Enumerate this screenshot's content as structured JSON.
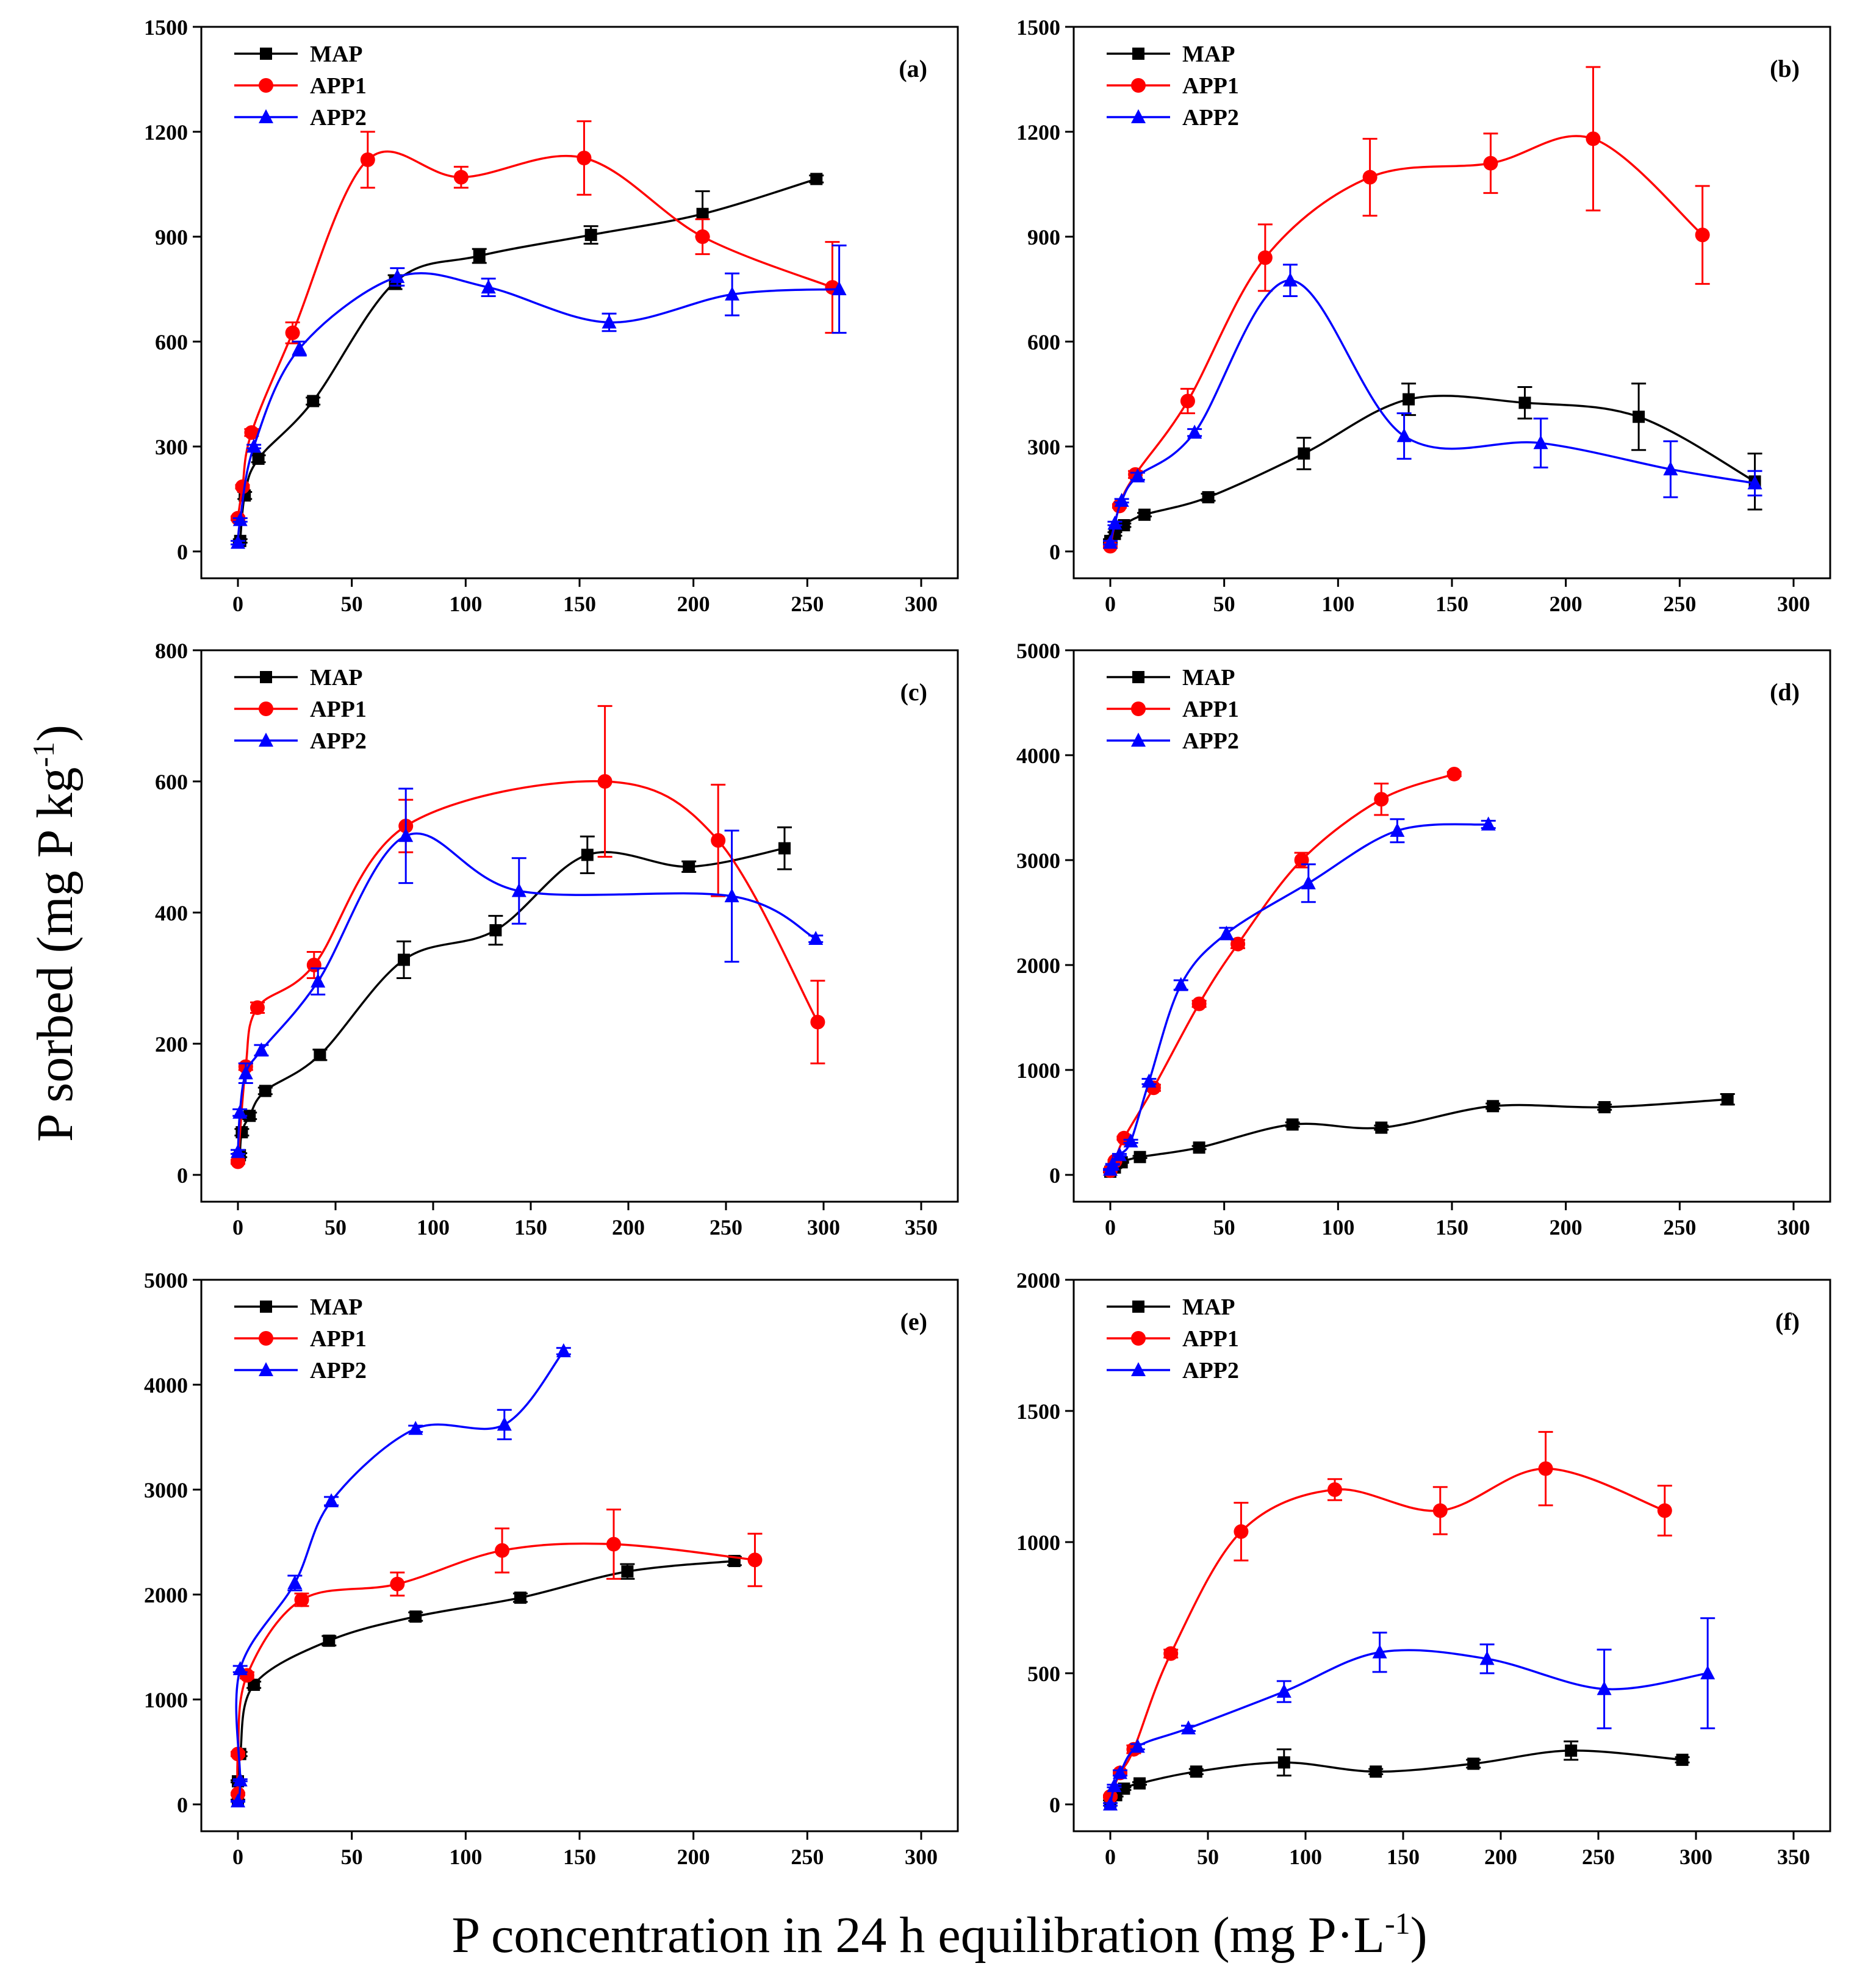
{
  "figure": {
    "ylabel_main": "P sorbed (mg P kg",
    "ylabel_sup": "-1",
    "ylabel_end": ")",
    "xlabel_main": "P concentration in 24 h equilibration (mg P·L",
    "xlabel_sup": "-1",
    "xlabel_end": ")"
  },
  "colors": {
    "MAP": "#000000",
    "APP1": "#ff0000",
    "APP2": "#0000ff"
  },
  "chart_data": [
    {
      "type": "scatter",
      "panel": "(a)",
      "xlim": [
        0,
        300
      ],
      "ylim": [
        0,
        1500
      ],
      "xticks": [
        0,
        50,
        100,
        150,
        200,
        250,
        300
      ],
      "yticks": [
        0,
        300,
        600,
        900,
        1200,
        1500
      ],
      "legend": [
        "MAP",
        "APP1",
        "APP2"
      ],
      "series": [
        {
          "name": "MAP",
          "marker": "square",
          "x": [
            1,
            3,
            9,
            33,
            69,
            106,
            155,
            204,
            254
          ],
          "y": [
            30,
            160,
            265,
            430,
            770,
            845,
            905,
            965,
            1065
          ],
          "err": [
            5,
            10,
            10,
            10,
            20,
            20,
            25,
            65,
            10
          ]
        },
        {
          "name": "APP1",
          "marker": "circle",
          "x": [
            0,
            2,
            6,
            24,
            57,
            98,
            152,
            204,
            261
          ],
          "y": [
            95,
            185,
            340,
            625,
            1120,
            1070,
            1125,
            900,
            755
          ],
          "err": [
            5,
            5,
            10,
            30,
            80,
            30,
            105,
            50,
            130
          ]
        },
        {
          "name": "APP2",
          "marker": "triangle",
          "x": [
            0,
            1,
            7,
            27,
            70,
            110,
            163,
            217,
            264
          ],
          "y": [
            25,
            90,
            300,
            580,
            785,
            755,
            655,
            735,
            750
          ],
          "err": [
            5,
            5,
            5,
            20,
            25,
            25,
            25,
            60,
            125
          ]
        }
      ]
    },
    {
      "type": "scatter",
      "panel": "(b)",
      "xlim": [
        0,
        300
      ],
      "ylim": [
        0,
        1500
      ],
      "xticks": [
        0,
        50,
        100,
        150,
        200,
        250,
        300
      ],
      "yticks": [
        0,
        300,
        600,
        900,
        1200,
        1500
      ],
      "legend": [
        "MAP",
        "APP1",
        "APP2"
      ],
      "series": [
        {
          "name": "MAP",
          "marker": "square",
          "x": [
            0,
            2,
            6,
            15,
            43,
            85,
            131,
            182,
            232,
            283
          ],
          "y": [
            30,
            50,
            75,
            105,
            155,
            280,
            435,
            425,
            385,
            200
          ],
          "err": [
            5,
            5,
            5,
            5,
            10,
            45,
            45,
            45,
            95,
            80
          ]
        },
        {
          "name": "APP1",
          "marker": "circle",
          "x": [
            0,
            4,
            11,
            34,
            68,
            114,
            167,
            212,
            260
          ],
          "y": [
            15,
            130,
            220,
            430,
            840,
            1070,
            1110,
            1180,
            905
          ],
          "err": [
            5,
            5,
            10,
            35,
            95,
            110,
            85,
            205,
            140
          ]
        },
        {
          "name": "APP2",
          "marker": "triangle",
          "x": [
            0,
            2,
            5,
            12,
            37,
            79,
            129,
            189,
            246,
            283
          ],
          "y": [
            25,
            80,
            145,
            215,
            340,
            775,
            330,
            310,
            235,
            195
          ],
          "err": [
            5,
            5,
            5,
            10,
            10,
            45,
            65,
            70,
            80,
            35
          ]
        }
      ]
    },
    {
      "type": "scatter",
      "panel": "(c)",
      "xlim": [
        0,
        350
      ],
      "ylim": [
        0,
        800
      ],
      "xticks": [
        0,
        50,
        100,
        150,
        200,
        250,
        300,
        350
      ],
      "yticks": [
        0,
        200,
        400,
        600,
        800
      ],
      "legend": [
        "MAP",
        "APP1",
        "APP2"
      ],
      "series": [
        {
          "name": "MAP",
          "marker": "square",
          "x": [
            1,
            2,
            6,
            14,
            42,
            85,
            132,
            179,
            231,
            280
          ],
          "y": [
            30,
            65,
            90,
            128,
            183,
            328,
            373,
            488,
            470,
            498
          ],
          "err": [
            3,
            5,
            5,
            5,
            8,
            28,
            22,
            28,
            8,
            32
          ]
        },
        {
          "name": "APP1",
          "marker": "circle",
          "x": [
            0,
            4,
            10,
            39,
            86,
            188,
            246,
            297
          ],
          "y": [
            20,
            165,
            255,
            320,
            532,
            600,
            510,
            233
          ],
          "err": [
            3,
            5,
            8,
            20,
            40,
            115,
            85,
            63
          ]
        },
        {
          "name": "APP2",
          "marker": "triangle",
          "x": [
            0,
            1,
            4,
            12,
            41,
            86,
            144,
            253,
            296
          ],
          "y": [
            35,
            95,
            155,
            190,
            295,
            517,
            433,
            425,
            360
          ],
          "err": [
            3,
            5,
            15,
            8,
            20,
            72,
            50,
            100,
            5
          ]
        }
      ]
    },
    {
      "type": "scatter",
      "panel": "(d)",
      "xlim": [
        0,
        300
      ],
      "ylim": [
        0,
        5000
      ],
      "xticks": [
        0,
        50,
        100,
        150,
        200,
        250,
        300
      ],
      "yticks": [
        0,
        1000,
        2000,
        3000,
        4000,
        5000
      ],
      "legend": [
        "MAP",
        "APP1",
        "APP2"
      ],
      "series": [
        {
          "name": "MAP",
          "marker": "square",
          "x": [
            0,
            2,
            5,
            13,
            39,
            80,
            119,
            168,
            217,
            271
          ],
          "y": [
            30,
            70,
            120,
            170,
            260,
            480,
            450,
            655,
            645,
            720
          ],
          "err": [
            5,
            5,
            5,
            10,
            15,
            20,
            20,
            25,
            25,
            50
          ]
        },
        {
          "name": "APP1",
          "marker": "circle",
          "x": [
            0,
            2,
            6,
            19,
            39,
            56,
            84,
            119,
            151
          ],
          "y": [
            40,
            130,
            350,
            830,
            1630,
            2200,
            3000,
            3580,
            3820
          ],
          "err": [
            5,
            10,
            15,
            30,
            30,
            40,
            70,
            150,
            20
          ]
        },
        {
          "name": "APP2",
          "marker": "triangle",
          "x": [
            0,
            1,
            4,
            9,
            17,
            31,
            51,
            87,
            126,
            166
          ],
          "y": [
            50,
            100,
            190,
            320,
            890,
            1810,
            2300,
            2780,
            3280,
            3340
          ],
          "err": [
            5,
            5,
            10,
            15,
            25,
            45,
            55,
            180,
            110,
            35
          ]
        }
      ]
    },
    {
      "type": "scatter",
      "panel": "(e)",
      "xlim": [
        0,
        300
      ],
      "ylim": [
        0,
        5000
      ],
      "xticks": [
        0,
        50,
        100,
        150,
        200,
        250,
        300
      ],
      "yticks": [
        0,
        1000,
        2000,
        3000,
        4000,
        5000
      ],
      "legend": [
        "MAP",
        "APP1",
        "APP2"
      ],
      "series": [
        {
          "name": "MAP",
          "marker": "square",
          "x": [
            0,
            0,
            1,
            7,
            40,
            78,
            124,
            171,
            218
          ],
          "y": [
            40,
            220,
            480,
            1140,
            1560,
            1790,
            1970,
            2220,
            2320
          ],
          "err": [
            5,
            10,
            20,
            30,
            45,
            40,
            40,
            70,
            40
          ]
        },
        {
          "name": "APP1",
          "marker": "circle",
          "x": [
            0,
            0,
            4,
            28,
            70,
            116,
            165,
            227
          ],
          "y": [
            100,
            480,
            1230,
            1950,
            2100,
            2420,
            2480,
            2330
          ],
          "err": [
            10,
            20,
            30,
            60,
            110,
            210,
            330,
            250
          ]
        },
        {
          "name": "APP2",
          "marker": "triangle",
          "x": [
            0,
            1,
            1,
            25,
            41,
            78,
            117,
            143
          ],
          "y": [
            30,
            230,
            1290,
            2110,
            2890,
            3580,
            3620,
            4320
          ],
          "err": [
            5,
            10,
            30,
            70,
            40,
            30,
            140,
            30
          ]
        }
      ]
    },
    {
      "type": "scatter",
      "panel": "(f)",
      "xlim": [
        0,
        350
      ],
      "ylim": [
        0,
        2000
      ],
      "xticks": [
        0,
        50,
        100,
        150,
        200,
        250,
        300,
        350
      ],
      "yticks": [
        0,
        500,
        1000,
        1500,
        2000
      ],
      "legend": [
        "MAP",
        "APP1",
        "APP2"
      ],
      "series": [
        {
          "name": "MAP",
          "marker": "square",
          "x": [
            0,
            3,
            7,
            15,
            44,
            89,
            136,
            186,
            236,
            293
          ],
          "y": [
            10,
            35,
            60,
            80,
            125,
            160,
            125,
            155,
            205,
            170
          ],
          "err": [
            5,
            5,
            5,
            5,
            10,
            50,
            10,
            15,
            35,
            10
          ]
        },
        {
          "name": "APP1",
          "marker": "circle",
          "x": [
            0,
            5,
            12,
            31,
            67,
            115,
            169,
            223,
            284
          ],
          "y": [
            30,
            120,
            210,
            575,
            1040,
            1200,
            1120,
            1280,
            1120
          ],
          "err": [
            5,
            10,
            15,
            15,
            110,
            40,
            90,
            140,
            95
          ]
        },
        {
          "name": "APP2",
          "marker": "triangle",
          "x": [
            0,
            2,
            5,
            14,
            40,
            89,
            138,
            193,
            253,
            306
          ],
          "y": [
            0,
            70,
            120,
            220,
            290,
            430,
            580,
            555,
            440,
            500
          ],
          "err": [
            5,
            5,
            10,
            10,
            10,
            40,
            75,
            55,
            150,
            210
          ]
        }
      ]
    }
  ]
}
